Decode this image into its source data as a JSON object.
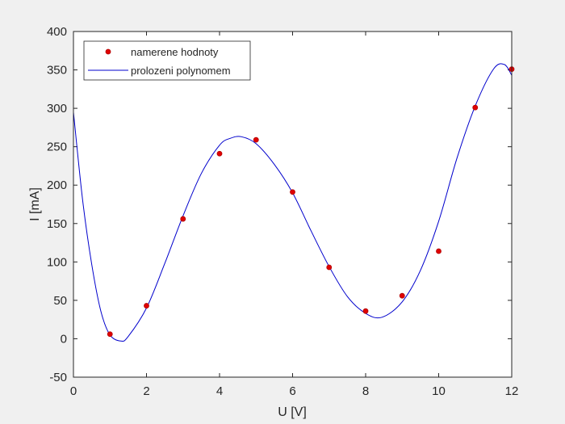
{
  "chart_data": {
    "type": "scatter",
    "title": "",
    "xlabel": "U [V]",
    "ylabel": "I [mA]",
    "xlim": [
      0,
      12
    ],
    "ylim": [
      -50,
      400
    ],
    "xticks": [
      0,
      2,
      4,
      6,
      8,
      10,
      12
    ],
    "yticks": [
      -50,
      0,
      50,
      100,
      150,
      200,
      250,
      300,
      350,
      400
    ],
    "grid": false,
    "legend_position": "top-left",
    "series": [
      {
        "name": "namerene hodnoty",
        "kind": "markers",
        "color": "#e00000",
        "x": [
          1,
          2,
          3,
          4,
          5,
          6,
          7,
          8,
          9,
          10,
          11,
          12
        ],
        "y": [
          6,
          43,
          156,
          241,
          259,
          191,
          93,
          36,
          56,
          114,
          301,
          351
        ]
      },
      {
        "name": "prolozeni polynomem",
        "kind": "line",
        "color": "#0000cc",
        "x": [
          0,
          0.25,
          0.5,
          0.75,
          1,
          1.3,
          1.5,
          2,
          2.5,
          3,
          3.5,
          4,
          4.3,
          4.6,
          5,
          5.5,
          6,
          6.5,
          7,
          7.5,
          8,
          8.45,
          9,
          9.5,
          10,
          10.5,
          11,
          11.5,
          11.8,
          12
        ],
        "y": [
          295,
          181,
          97,
          36,
          5,
          -3,
          3,
          40,
          98,
          160,
          215,
          252,
          261,
          263,
          254,
          227,
          190,
          141,
          94,
          55,
          33,
          28,
          48,
          89,
          153,
          235,
          303,
          351,
          357,
          343
        ]
      }
    ]
  }
}
